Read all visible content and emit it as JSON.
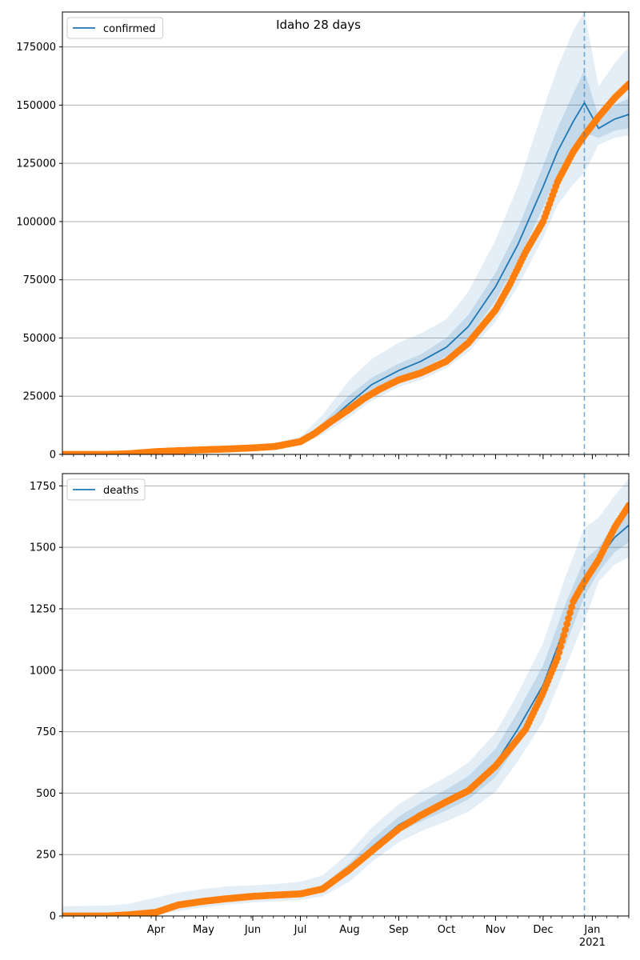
{
  "title": "Idaho 28 days",
  "colors": {
    "model": "#1f77b4",
    "observed": "#ff7f0e",
    "band": "#1f77b4",
    "grid": "#b0b0b0",
    "vline": "#1f77b4"
  },
  "x_axis": {
    "start": "2020-02-02",
    "end": "2021-01-24",
    "forecast_start": "2020-12-27",
    "month_ticks": [
      {
        "date": "2020-04-01",
        "label": "Apr"
      },
      {
        "date": "2020-05-01",
        "label": "May"
      },
      {
        "date": "2020-06-01",
        "label": "Jun"
      },
      {
        "date": "2020-07-01",
        "label": "Jul"
      },
      {
        "date": "2020-08-01",
        "label": "Aug"
      },
      {
        "date": "2020-09-01",
        "label": "Sep"
      },
      {
        "date": "2020-10-01",
        "label": "Oct"
      },
      {
        "date": "2020-11-01",
        "label": "Nov"
      },
      {
        "date": "2020-12-01",
        "label": "Dec"
      },
      {
        "date": "2021-01-01",
        "label": "Jan"
      }
    ],
    "year_label": "2021"
  },
  "chart_data": [
    {
      "type": "line",
      "legend": "confirmed",
      "legend_position": "top-left",
      "grid": "y",
      "ylim": [
        0,
        190000
      ],
      "yticks": [
        0,
        25000,
        50000,
        75000,
        100000,
        125000,
        150000,
        175000
      ],
      "ytick_labels": [
        "0",
        "25000",
        "50000",
        "75000",
        "100000",
        "125000",
        "150000",
        "175000"
      ],
      "model": {
        "x": [
          "2020-02-02",
          "2020-03-01",
          "2020-04-01",
          "2020-05-01",
          "2020-06-01",
          "2020-06-15",
          "2020-07-01",
          "2020-07-15",
          "2020-08-01",
          "2020-08-15",
          "2020-09-01",
          "2020-09-15",
          "2020-10-01",
          "2020-10-15",
          "2020-11-01",
          "2020-11-15",
          "2020-12-01",
          "2020-12-10",
          "2020-12-20",
          "2020-12-27",
          "2021-01-05",
          "2021-01-15",
          "2021-01-24"
        ],
        "y": [
          0,
          0,
          800,
          2000,
          2800,
          3400,
          5500,
          12000,
          22000,
          30000,
          36000,
          40000,
          46000,
          55000,
          72000,
          90000,
          115000,
          130000,
          143000,
          151000,
          140000,
          144000,
          146000
        ],
        "band_inner": [
          [
            0,
            0
          ],
          [
            0,
            0
          ],
          [
            600,
            1000
          ],
          [
            1700,
            2300
          ],
          [
            2400,
            3200
          ],
          [
            3000,
            3800
          ],
          [
            5000,
            6000
          ],
          [
            11000,
            13500
          ],
          [
            19500,
            25500
          ],
          [
            27000,
            33000
          ],
          [
            33000,
            39000
          ],
          [
            36500,
            43000
          ],
          [
            42000,
            50000
          ],
          [
            50000,
            60000
          ],
          [
            66000,
            78000
          ],
          [
            83000,
            97000
          ],
          [
            106000,
            124000
          ],
          [
            120000,
            140000
          ],
          [
            131000,
            155000
          ],
          [
            138000,
            165000
          ],
          [
            136000,
            145000
          ],
          [
            139000,
            150000
          ],
          [
            140000,
            153000
          ]
        ],
        "band_outer": [
          [
            0,
            200
          ],
          [
            0,
            400
          ],
          [
            300,
            1500
          ],
          [
            1200,
            3000
          ],
          [
            1800,
            4200
          ],
          [
            2400,
            5000
          ],
          [
            4000,
            7500
          ],
          [
            8500,
            17000
          ],
          [
            16000,
            32000
          ],
          [
            23000,
            41000
          ],
          [
            29000,
            48000
          ],
          [
            32000,
            52000
          ],
          [
            37000,
            58000
          ],
          [
            44000,
            70000
          ],
          [
            57000,
            92000
          ],
          [
            72000,
            115000
          ],
          [
            93000,
            148000
          ],
          [
            107000,
            166000
          ],
          [
            116000,
            182000
          ],
          [
            121000,
            190000
          ],
          [
            133000,
            158000
          ],
          [
            136000,
            168000
          ],
          [
            137000,
            175000
          ]
        ]
      },
      "observed": {
        "x": [
          "2020-02-02",
          "2020-03-01",
          "2020-03-15",
          "2020-04-01",
          "2020-04-15",
          "2020-05-01",
          "2020-05-15",
          "2020-06-01",
          "2020-06-15",
          "2020-07-01",
          "2020-07-10",
          "2020-07-20",
          "2020-08-01",
          "2020-08-10",
          "2020-08-20",
          "2020-09-01",
          "2020-09-15",
          "2020-10-01",
          "2020-10-15",
          "2020-11-01",
          "2020-11-10",
          "2020-11-20",
          "2020-12-01",
          "2020-12-10",
          "2020-12-20",
          "2020-12-27",
          "2021-01-05",
          "2021-01-15",
          "2021-01-24"
        ],
        "y": [
          0,
          0,
          300,
          1200,
          1600,
          2000,
          2300,
          2800,
          3400,
          5500,
          9000,
          14000,
          19500,
          24000,
          28000,
          32000,
          35000,
          40000,
          48000,
          62000,
          73000,
          87000,
          100000,
          117000,
          130000,
          137000,
          145000,
          153000,
          159000
        ]
      }
    },
    {
      "type": "line",
      "legend": "deaths",
      "legend_position": "top-left",
      "grid": "y",
      "ylim": [
        0,
        1800
      ],
      "yticks": [
        0,
        250,
        500,
        750,
        1000,
        1250,
        1500,
        1750
      ],
      "ytick_labels": [
        "0",
        "250",
        "500",
        "750",
        "1000",
        "1250",
        "1500",
        "1750"
      ],
      "model": {
        "x": [
          "2020-02-02",
          "2020-03-01",
          "2020-03-15",
          "2020-04-01",
          "2020-04-15",
          "2020-05-01",
          "2020-05-15",
          "2020-06-01",
          "2020-06-15",
          "2020-07-01",
          "2020-07-15",
          "2020-08-01",
          "2020-08-15",
          "2020-09-01",
          "2020-09-15",
          "2020-10-01",
          "2020-10-15",
          "2020-11-01",
          "2020-11-15",
          "2020-12-01",
          "2020-12-15",
          "2020-12-27",
          "2021-01-05",
          "2021-01-15",
          "2021-01-24"
        ],
        "y": [
          0,
          0,
          5,
          15,
          40,
          60,
          70,
          80,
          85,
          90,
          110,
          190,
          280,
          370,
          420,
          470,
          520,
          620,
          760,
          940,
          1180,
          1370,
          1450,
          1540,
          1590
        ],
        "band_inner": [
          [
            0,
            5
          ],
          [
            0,
            5
          ],
          [
            2,
            10
          ],
          [
            10,
            22
          ],
          [
            32,
            50
          ],
          [
            50,
            72
          ],
          [
            60,
            82
          ],
          [
            70,
            92
          ],
          [
            75,
            98
          ],
          [
            80,
            102
          ],
          [
            98,
            125
          ],
          [
            170,
            215
          ],
          [
            255,
            310
          ],
          [
            340,
            405
          ],
          [
            385,
            460
          ],
          [
            430,
            515
          ],
          [
            475,
            570
          ],
          [
            565,
            680
          ],
          [
            700,
            830
          ],
          [
            870,
            1020
          ],
          [
            1100,
            1270
          ],
          [
            1300,
            1450
          ],
          [
            1400,
            1500
          ],
          [
            1480,
            1600
          ],
          [
            1520,
            1670
          ]
        ],
        "band_outer": [
          [
            0,
            40
          ],
          [
            0,
            42
          ],
          [
            0,
            50
          ],
          [
            5,
            75
          ],
          [
            20,
            95
          ],
          [
            35,
            110
          ],
          [
            45,
            120
          ],
          [
            55,
            125
          ],
          [
            60,
            130
          ],
          [
            65,
            140
          ],
          [
            80,
            165
          ],
          [
            140,
            260
          ],
          [
            220,
            360
          ],
          [
            300,
            455
          ],
          [
            345,
            510
          ],
          [
            385,
            565
          ],
          [
            425,
            625
          ],
          [
            505,
            745
          ],
          [
            630,
            905
          ],
          [
            790,
            1110
          ],
          [
            1010,
            1380
          ],
          [
            1200,
            1580
          ],
          [
            1360,
            1620
          ],
          [
            1430,
            1710
          ],
          [
            1460,
            1780
          ]
        ]
      },
      "observed": {
        "x": [
          "2020-02-02",
          "2020-03-01",
          "2020-03-15",
          "2020-04-01",
          "2020-04-15",
          "2020-05-01",
          "2020-05-15",
          "2020-06-01",
          "2020-06-15",
          "2020-07-01",
          "2020-07-15",
          "2020-08-01",
          "2020-08-15",
          "2020-09-01",
          "2020-09-15",
          "2020-10-01",
          "2020-10-15",
          "2020-11-01",
          "2020-11-10",
          "2020-11-20",
          "2020-12-01",
          "2020-12-10",
          "2020-12-20",
          "2020-12-27",
          "2021-01-05",
          "2021-01-15",
          "2021-01-24"
        ],
        "y": [
          0,
          0,
          5,
          15,
          45,
          60,
          70,
          80,
          85,
          90,
          110,
          190,
          265,
          355,
          410,
          465,
          510,
          610,
          680,
          760,
          910,
          1050,
          1280,
          1360,
          1450,
          1580,
          1670
        ]
      }
    }
  ]
}
